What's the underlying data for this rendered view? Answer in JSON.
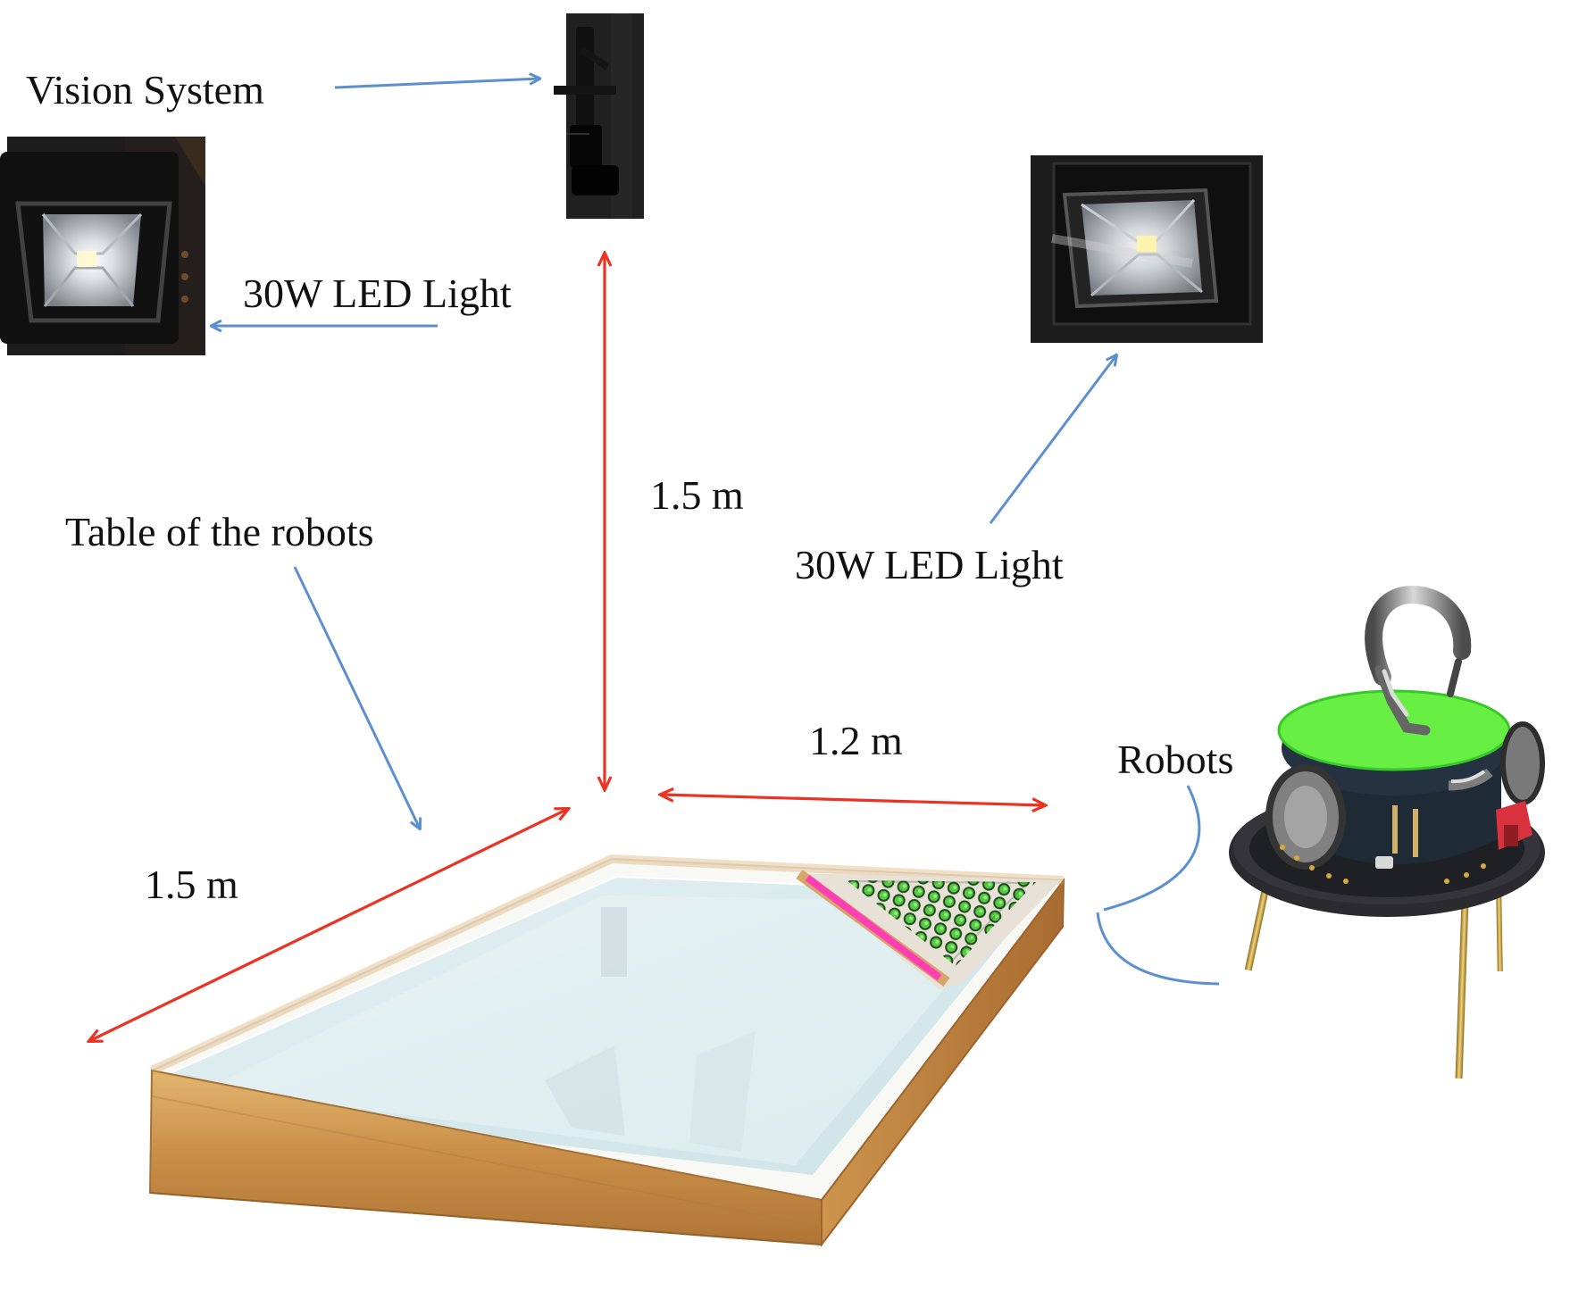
{
  "labels": {
    "vision_system": "Vision System",
    "led_light_left": "30W LED Light",
    "led_light_right": "30W LED Light",
    "table_of_robots": "Table of the robots",
    "robots": "Robots"
  },
  "dimensions": {
    "height": "1.5 m",
    "width": "1.2 m",
    "length": "1.5 m"
  },
  "colors": {
    "callout_arrow": "#5b8fd0",
    "dimension_arrow": "#ea3323",
    "robot_top": "#63ef43",
    "table_frame": "#d6a86d",
    "table_surface": "#dcecef",
    "magenta_strip": "#ff3fb3"
  },
  "icons": {
    "camera": "camera-icon",
    "led": "led-light-icon",
    "robot": "robot-icon"
  }
}
